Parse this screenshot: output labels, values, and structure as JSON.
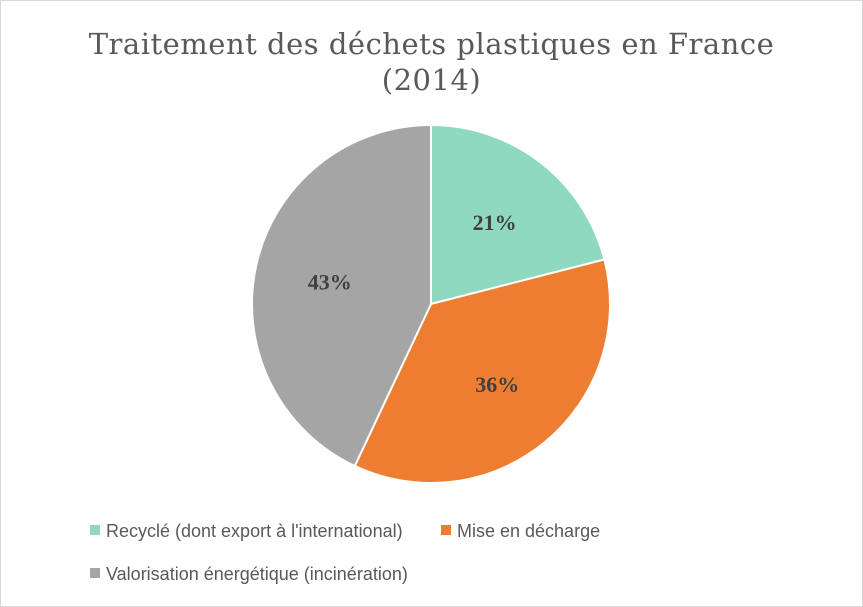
{
  "chart_data": {
    "type": "pie",
    "title_line1": "Traitement des déchets plastiques en France",
    "title_line2": "(2014)",
    "categories": [
      "Recyclé (dont export à l'international)",
      "Mise en décharge",
      "Valorisation énergétique (incinération)"
    ],
    "values": [
      21,
      36,
      43
    ],
    "value_labels": [
      "21%",
      "36%",
      "43%"
    ],
    "colors": [
      "#8fd9c0",
      "#ed7d31",
      "#a5a5a5"
    ],
    "start_angle_deg": 0,
    "direction": "clockwise",
    "legend_position": "bottom"
  }
}
